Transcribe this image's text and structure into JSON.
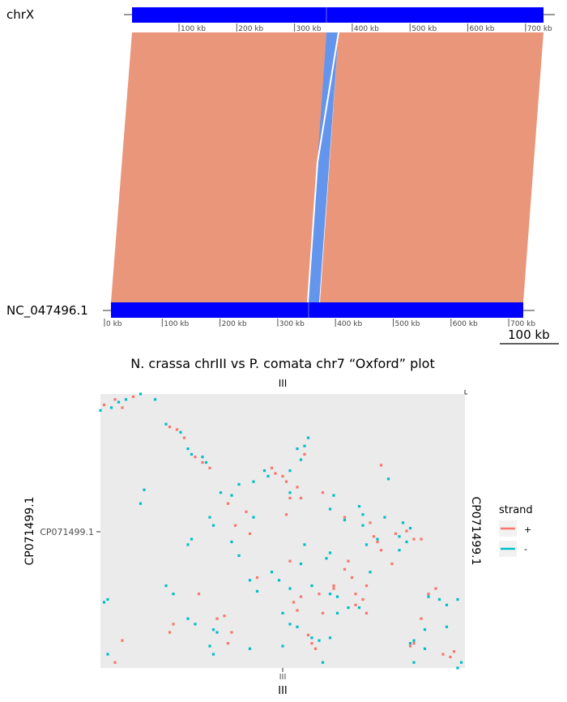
{
  "synteny": {
    "top_genome": "chrX",
    "bottom_genome": "NC_047496.1",
    "top_ticks": [
      "100 kb",
      "200 kb",
      "300 kb",
      "400 kb",
      "500 kb",
      "600 kb",
      "700 kb"
    ],
    "bottom_ticks": [
      "0 kb",
      "100 kb",
      "200 kb",
      "300 kb",
      "400 kb",
      "500 kb",
      "600 kb",
      "700 kb"
    ],
    "scale_bar": "100 kb",
    "colors": {
      "chrom": "#0000ff",
      "forward": "#e9967a",
      "reverse": "#6495ed"
    }
  },
  "chart_data": {
    "type": "scatter",
    "title": "N. crassa chrIII vs P. comata chr7 “Oxford” plot",
    "x_top_label": "III",
    "x_tick": "III",
    "x_label": "III",
    "y_label": "CP071499.1",
    "y_tick": "CP071499.1",
    "y_right_label": "CP071499.1",
    "legend": {
      "title": "strand",
      "position": "right",
      "entries": [
        "+",
        "-"
      ]
    },
    "colors": {
      "+": "#f8766d",
      "-": "#00bfc4",
      "panel": "#ebebeb"
    },
    "xlim": [
      0,
      1
    ],
    "ylim": [
      0,
      1
    ],
    "series": [
      {
        "name": "+",
        "points": [
          [
            0.01,
            0.96
          ],
          [
            0.04,
            0.98
          ],
          [
            0.06,
            0.95
          ],
          [
            0.09,
            0.99
          ],
          [
            0.19,
            0.88
          ],
          [
            0.21,
            0.87
          ],
          [
            0.23,
            0.84
          ],
          [
            0.26,
            0.77
          ],
          [
            0.28,
            0.75
          ],
          [
            0.3,
            0.73
          ],
          [
            0.35,
            0.6
          ],
          [
            0.47,
            0.73
          ],
          [
            0.48,
            0.71
          ],
          [
            0.5,
            0.7
          ],
          [
            0.51,
            0.68
          ],
          [
            0.54,
            0.66
          ],
          [
            0.55,
            0.62
          ],
          [
            0.51,
            0.56
          ],
          [
            0.4,
            0.57
          ],
          [
            0.41,
            0.49
          ],
          [
            0.56,
            0.78
          ],
          [
            0.52,
            0.62
          ],
          [
            0.61,
            0.64
          ],
          [
            0.67,
            0.55
          ],
          [
            0.77,
            0.74
          ],
          [
            0.74,
            0.53
          ],
          [
            0.75,
            0.48
          ],
          [
            0.76,
            0.46
          ],
          [
            0.77,
            0.43
          ],
          [
            0.8,
            0.38
          ],
          [
            0.84,
            0.5
          ],
          [
            0.81,
            0.49
          ],
          [
            0.86,
            0.47
          ],
          [
            0.88,
            0.47
          ],
          [
            0.68,
            0.39
          ],
          [
            0.67,
            0.36
          ],
          [
            0.64,
            0.3
          ],
          [
            0.64,
            0.29
          ],
          [
            0.69,
            0.33
          ],
          [
            0.7,
            0.27
          ],
          [
            0.7,
            0.23
          ],
          [
            0.72,
            0.25
          ],
          [
            0.73,
            0.2
          ],
          [
            0.53,
            0.24
          ],
          [
            0.54,
            0.21
          ],
          [
            0.55,
            0.26
          ],
          [
            0.57,
            0.12
          ],
          [
            0.58,
            0.09
          ],
          [
            0.59,
            0.07
          ],
          [
            0.35,
            0.09
          ],
          [
            0.36,
            0.13
          ],
          [
            0.32,
            0.18
          ],
          [
            0.34,
            0.19
          ],
          [
            0.2,
            0.16
          ],
          [
            0.19,
            0.13
          ],
          [
            0.27,
            0.27
          ],
          [
            0.04,
            0.02
          ],
          [
            0.06,
            0.1
          ],
          [
            0.85,
            0.08
          ],
          [
            0.86,
            0.09
          ],
          [
            0.9,
            0.27
          ],
          [
            0.92,
            0.29
          ],
          [
            0.94,
            0.05
          ],
          [
            0.96,
            0.04
          ],
          [
            0.97,
            0.06
          ],
          [
            0.88,
            0.18
          ],
          [
            0.61,
            0.2
          ],
          [
            0.73,
            0.3
          ],
          [
            0.6,
            0.27
          ],
          [
            0.37,
            0.52
          ],
          [
            0.52,
            0.39
          ],
          [
            0.43,
            0.33
          ]
        ]
      },
      {
        "name": "-",
        "points": [
          [
            0.0,
            0.94
          ],
          [
            0.03,
            0.95
          ],
          [
            0.05,
            0.97
          ],
          [
            0.07,
            0.98
          ],
          [
            0.11,
            1.0
          ],
          [
            0.18,
            0.89
          ],
          [
            0.22,
            0.86
          ],
          [
            0.24,
            0.8
          ],
          [
            0.25,
            0.78
          ],
          [
            0.28,
            0.77
          ],
          [
            0.29,
            0.75
          ],
          [
            0.33,
            0.64
          ],
          [
            0.38,
            0.67
          ],
          [
            0.36,
            0.63
          ],
          [
            0.42,
            0.55
          ],
          [
            0.42,
            0.68
          ],
          [
            0.45,
            0.72
          ],
          [
            0.46,
            0.7
          ],
          [
            0.52,
            0.72
          ],
          [
            0.55,
            0.76
          ],
          [
            0.56,
            0.81
          ],
          [
            0.57,
            0.84
          ],
          [
            0.54,
            0.8
          ],
          [
            0.52,
            0.64
          ],
          [
            0.64,
            0.63
          ],
          [
            0.63,
            0.58
          ],
          [
            0.67,
            0.54
          ],
          [
            0.71,
            0.59
          ],
          [
            0.72,
            0.56
          ],
          [
            0.72,
            0.52
          ],
          [
            0.79,
            0.69
          ],
          [
            0.78,
            0.55
          ],
          [
            0.83,
            0.53
          ],
          [
            0.85,
            0.51
          ],
          [
            0.82,
            0.48
          ],
          [
            0.76,
            0.47
          ],
          [
            0.73,
            0.45
          ],
          [
            0.63,
            0.42
          ],
          [
            0.62,
            0.4
          ],
          [
            0.56,
            0.45
          ],
          [
            0.55,
            0.38
          ],
          [
            0.47,
            0.35
          ],
          [
            0.49,
            0.32
          ],
          [
            0.52,
            0.29
          ],
          [
            0.58,
            0.3
          ],
          [
            0.63,
            0.27
          ],
          [
            0.65,
            0.26
          ],
          [
            0.68,
            0.22
          ],
          [
            0.71,
            0.22
          ],
          [
            0.5,
            0.2
          ],
          [
            0.52,
            0.16
          ],
          [
            0.54,
            0.15
          ],
          [
            0.58,
            0.11
          ],
          [
            0.6,
            0.1
          ],
          [
            0.61,
            0.02
          ],
          [
            0.63,
            0.11
          ],
          [
            0.41,
            0.32
          ],
          [
            0.43,
            0.28
          ],
          [
            0.38,
            0.41
          ],
          [
            0.36,
            0.46
          ],
          [
            0.25,
            0.47
          ],
          [
            0.24,
            0.45
          ],
          [
            0.3,
            0.55
          ],
          [
            0.31,
            0.52
          ],
          [
            0.12,
            0.65
          ],
          [
            0.11,
            0.6
          ],
          [
            0.18,
            0.3
          ],
          [
            0.2,
            0.27
          ],
          [
            0.24,
            0.18
          ],
          [
            0.26,
            0.16
          ],
          [
            0.31,
            0.14
          ],
          [
            0.32,
            0.13
          ],
          [
            0.01,
            0.24
          ],
          [
            0.02,
            0.25
          ],
          [
            0.3,
            0.08
          ],
          [
            0.31,
            0.05
          ],
          [
            0.5,
            0.08
          ],
          [
            0.41,
            0.07
          ],
          [
            0.85,
            0.09
          ],
          [
            0.86,
            0.1
          ],
          [
            0.89,
            0.07
          ],
          [
            0.9,
            0.26
          ],
          [
            0.93,
            0.25
          ],
          [
            0.95,
            0.23
          ],
          [
            0.98,
            0.25
          ],
          [
            0.86,
            0.02
          ],
          [
            0.89,
            0.14
          ],
          [
            0.95,
            0.15
          ],
          [
            0.98,
            0.0
          ],
          [
            0.99,
            0.02
          ],
          [
            0.02,
            0.05
          ],
          [
            0.74,
            0.35
          ],
          [
            0.82,
            0.43
          ],
          [
            0.84,
            0.46
          ],
          [
            0.65,
            0.2
          ],
          [
            0.15,
            0.98
          ]
        ]
      }
    ]
  }
}
